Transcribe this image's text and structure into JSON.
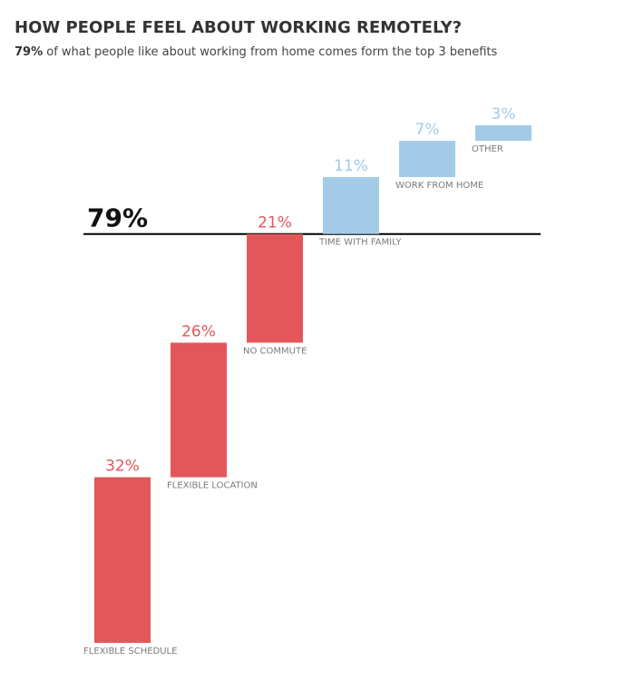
{
  "header": {
    "title": "HOW PEOPLE FEEL ABOUT WORKING REMOTELY?",
    "subtitle_highlight": "79%",
    "subtitle_rest": " of what people like about working from home comes form the top 3 benefits"
  },
  "colors": {
    "top_benefit": "#e3575b",
    "other_benefit": "#a3cbe8",
    "baseline": "#000000",
    "category_label": "#7a7a7a"
  },
  "chart_data": {
    "type": "waterfall",
    "title": "HOW PEOPLE FEEL ABOUT WORKING REMOTELY?",
    "xlabel": "",
    "ylabel": "",
    "categories": [
      "FLEXIBLE SCHEDULE",
      "FLEXIBLE LOCATION",
      "NO COMMUTE",
      "TIME WITH FAMILY",
      "WORK FROM HOME",
      "OTHER"
    ],
    "values": [
      32,
      26,
      21,
      11,
      7,
      3
    ],
    "value_labels": [
      "32%",
      "26%",
      "21%",
      "11%",
      "7%",
      "3%"
    ],
    "groups": [
      "top",
      "top",
      "top",
      "other",
      "other",
      "other"
    ],
    "ylim": [
      0,
      100
    ],
    "reference_line": {
      "value": 79,
      "label": "79%"
    },
    "grid": false
  }
}
